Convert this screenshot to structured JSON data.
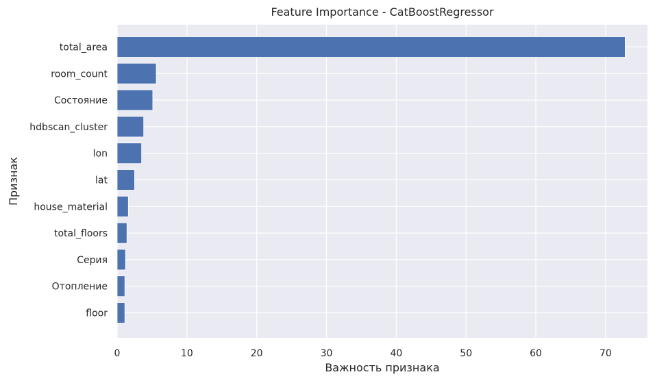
{
  "chart_data": {
    "type": "bar",
    "orientation": "horizontal",
    "title": "Feature Importance - CatBoostRegressor",
    "xlabel": "Важность признака",
    "ylabel": "Признак",
    "categories": [
      "total_area",
      "room_count",
      "Состояние",
      "hdbscan_cluster",
      "lon",
      "lat",
      "house_material",
      "total_floors",
      "Серия",
      "Отопление",
      "floor"
    ],
    "values": [
      72.8,
      5.6,
      5.1,
      3.8,
      3.5,
      2.5,
      1.6,
      1.4,
      1.2,
      1.1,
      1.1
    ],
    "xlim": [
      0,
      76
    ],
    "xticks": [
      "0",
      "10",
      "20",
      "30",
      "40",
      "50",
      "60",
      "70"
    ],
    "grid": true,
    "colors": {
      "bar": "#4c72b0",
      "plot_bg": "#eaeaf2",
      "grid": "#ffffff"
    }
  }
}
